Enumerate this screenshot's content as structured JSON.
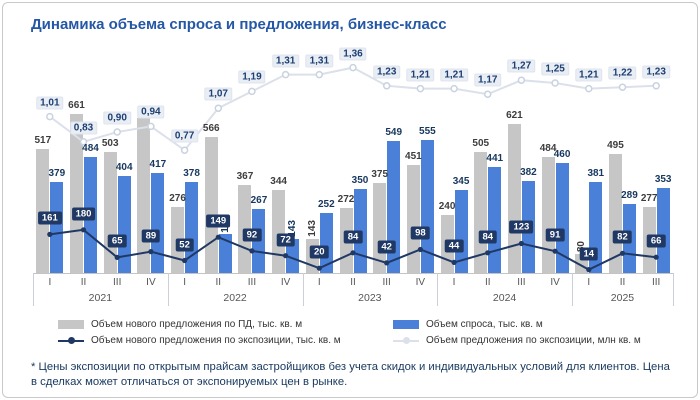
{
  "title": "Динамика объема спроса и предложения, бизнес-класс",
  "footnote": "* Цены экспозиции по открытым прайсам застройщиков без учета скидок и индивидуальных условий для клиентов. Цена в сделках может отличаться от экспонируемых цен в рынке.",
  "colors": {
    "title": "#2457a5",
    "footnote": "#17375e",
    "gray_bar": "#c6c6c6",
    "blue_bar": "#4a80d8",
    "dark_line": "#1f3864",
    "light_line": "#dbe0ea",
    "axis_text": "#555555",
    "border": "#c9c9c9"
  },
  "legend": {
    "items": [
      {
        "label": "Объем нового предложения по ПД, тыс. кв. м",
        "marker": "gray-bar"
      },
      {
        "label": "Объем спроса, тыс. кв. м",
        "marker": "blue-bar"
      },
      {
        "label": "Объем нового предложения по экспозиции, тыс. кв. м",
        "marker": "dark-line"
      },
      {
        "label": "Объем предложения по экспозиции, млн кв. м",
        "marker": "light-line"
      }
    ]
  },
  "chart_data": {
    "type": "combo (grouped bars + two lines)",
    "grid": false,
    "legend_position": "bottom",
    "categories": [
      "I",
      "II",
      "III",
      "IV",
      "I",
      "II",
      "III",
      "IV",
      "I",
      "II",
      "III",
      "IV",
      "I",
      "II",
      "III",
      "IV",
      "I",
      "II",
      "III"
    ],
    "year_groups": [
      {
        "year": "2021",
        "count": 4
      },
      {
        "year": "2022",
        "count": 4
      },
      {
        "year": "2023",
        "count": 4
      },
      {
        "year": "2024",
        "count": 4
      },
      {
        "year": "2025",
        "count": 3
      }
    ],
    "ylim_bars_thousand_sqm": [
      0,
      750
    ],
    "ylim_line_mln_sqm": [
      0,
      1.5
    ],
    "series": [
      {
        "name": "Объем нового предложения по ПД, тыс. кв. м",
        "type": "bar",
        "color": "#c6c6c6",
        "label_color": "#3d3d3d",
        "values": [
          517,
          661,
          503,
          645,
          276,
          566,
          367,
          344,
          143,
          272,
          375,
          451,
          240,
          505,
          621,
          484,
          80,
          495,
          277
        ],
        "labels": [
          "517",
          "661",
          "503",
          "",
          "276",
          "566",
          "367",
          "344",
          "143",
          "272",
          "375",
          "451",
          "240",
          "505",
          "621",
          "484",
          "80",
          "495",
          "277"
        ],
        "vertical_labels": [
          8,
          16
        ]
      },
      {
        "name": "Объем спроса, тыс. кв. м",
        "type": "bar",
        "color": "#4a80d8",
        "label_color": "#17375e",
        "values": [
          379,
          484,
          404,
          417,
          378,
          161,
          267,
          143,
          252,
          350,
          549,
          555,
          345,
          441,
          382,
          460,
          381,
          289,
          353
        ],
        "labels": [
          "379",
          "484",
          "404",
          "417",
          "378",
          "161",
          "267",
          "143",
          "252",
          "350",
          "549",
          "555",
          "345",
          "441",
          "382",
          "460",
          "381",
          "289",
          "353"
        ],
        "vertical_labels": [
          5,
          7
        ]
      },
      {
        "name": "Объем нового предложения по экспозиции, тыс. кв. м",
        "type": "line",
        "color": "#1f3864",
        "values": [
          161,
          180,
          65,
          89,
          52,
          149,
          92,
          72,
          20,
          84,
          42,
          98,
          44,
          84,
          123,
          91,
          14,
          82,
          66
        ],
        "labels": [
          "161",
          "180",
          "65",
          "89",
          "52",
          "149",
          "92",
          "72",
          "20",
          "84",
          "42",
          "98",
          "44",
          "84",
          "123",
          "91",
          "14",
          "82",
          "66"
        ]
      },
      {
        "name": "Объем предложения по экспозиции, млн кв. м",
        "type": "line",
        "color": "#dbe0ea",
        "values": [
          1.01,
          0.83,
          0.9,
          0.94,
          0.77,
          1.07,
          1.19,
          1.31,
          1.31,
          1.36,
          1.23,
          1.21,
          1.21,
          1.17,
          1.27,
          1.25,
          1.21,
          1.22,
          1.23
        ],
        "labels": [
          "1,01",
          "0,83",
          "0,90",
          "0,94",
          "0,77",
          "1,07",
          "1,19",
          "1,31",
          "1,31",
          "1,36",
          "1,23",
          "1,21",
          "1,21",
          "1,17",
          "1,27",
          "1,25",
          "1,21",
          "1,22",
          "1,23"
        ]
      }
    ]
  }
}
